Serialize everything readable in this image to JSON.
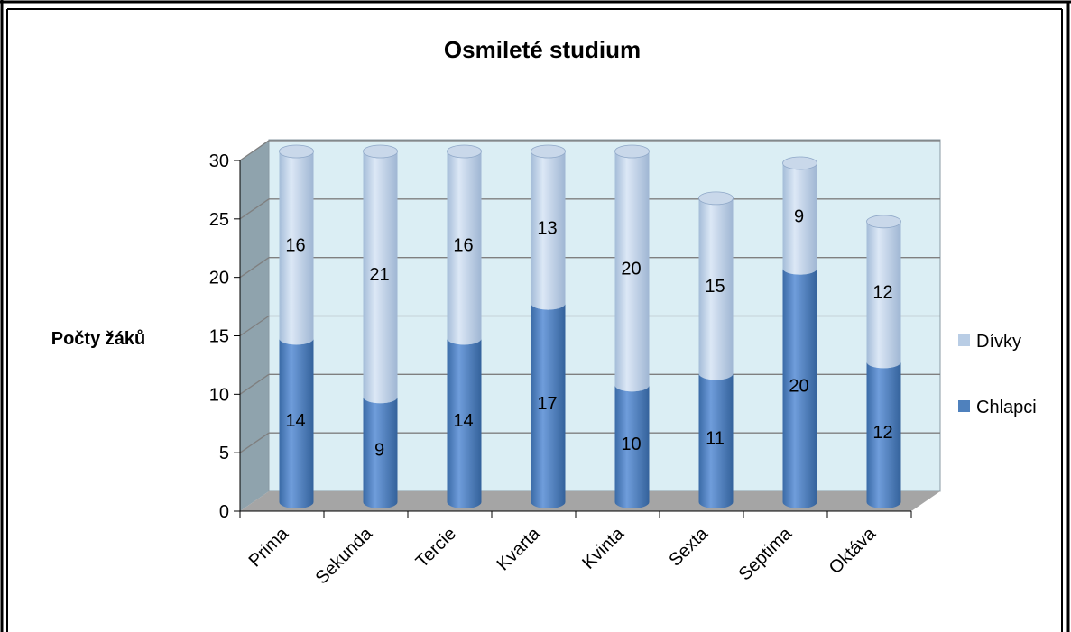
{
  "chart_data": {
    "type": "bar",
    "stacked": true,
    "style": "3d-cylinder",
    "title": "Osmileté studium",
    "xlabel": "",
    "ylabel": "Počty žáků",
    "ylim": [
      0,
      30
    ],
    "yticks": [
      0,
      5,
      10,
      15,
      20,
      25,
      30
    ],
    "categories": [
      "Prima",
      "Sekunda",
      "Tercie",
      "Kvarta",
      "Kvinta",
      "Sexta",
      "Septima",
      "Oktáva"
    ],
    "series": [
      {
        "name": "Chlapci",
        "values": [
          14,
          9,
          14,
          17,
          10,
          11,
          20,
          12
        ],
        "color": "#4f81bd"
      },
      {
        "name": "Dívky",
        "values": [
          16,
          21,
          16,
          13,
          20,
          15,
          9,
          12
        ],
        "color": "#b9cde5"
      }
    ],
    "grid": true,
    "legend": "right",
    "data_labels": true,
    "wall_color": "#dbeef4",
    "floor_color": "#a5a5a5"
  }
}
